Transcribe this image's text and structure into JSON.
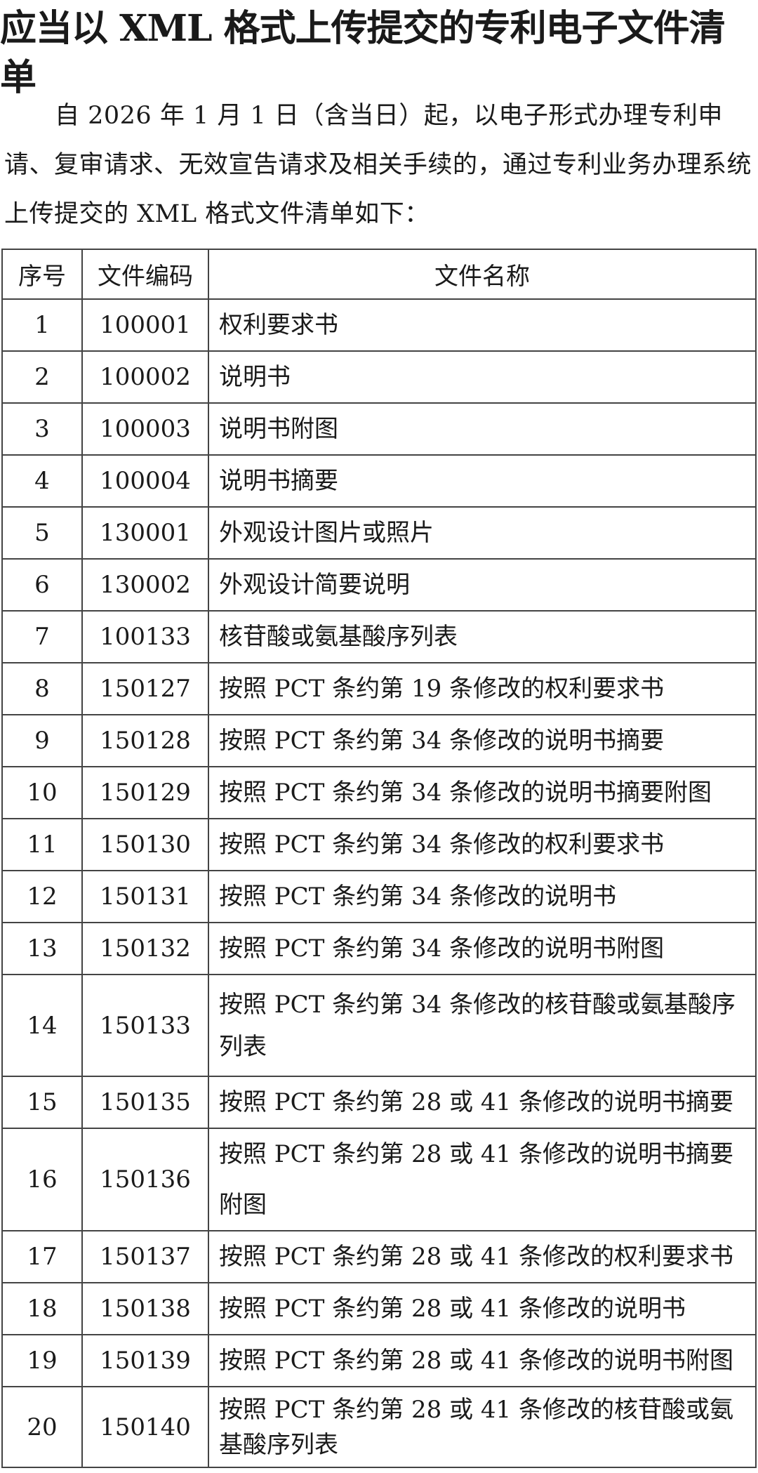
{
  "title": "应当以 XML 格式上传提交的专利电子文件清单",
  "intro": "自 2026 年 1 月 1 日（含当日）起，以电子形式办理专利申请、复审请求、无效宣告请求及相关手续的，通过专利业务办理系统上传提交的 XML 格式文件清单如下：",
  "table": {
    "headers": [
      "序号",
      "文件编码",
      "文件名称"
    ],
    "rows": [
      {
        "no": "1",
        "code": "100001",
        "name": "权利要求书"
      },
      {
        "no": "2",
        "code": "100002",
        "name": "说明书"
      },
      {
        "no": "3",
        "code": "100003",
        "name": "说明书附图"
      },
      {
        "no": "4",
        "code": "100004",
        "name": "说明书摘要"
      },
      {
        "no": "5",
        "code": "130001",
        "name": "外观设计图片或照片"
      },
      {
        "no": "6",
        "code": "130002",
        "name": "外观设计简要说明"
      },
      {
        "no": "7",
        "code": "100133",
        "name": "核苷酸或氨基酸序列表"
      },
      {
        "no": "8",
        "code": "150127",
        "name": "按照 PCT 条约第 19 条修改的权利要求书"
      },
      {
        "no": "9",
        "code": "150128",
        "name": "按照 PCT 条约第 34 条修改的说明书摘要"
      },
      {
        "no": "10",
        "code": "150129",
        "name": "按照 PCT 条约第 34 条修改的说明书摘要附图"
      },
      {
        "no": "11",
        "code": "150130",
        "name": "按照 PCT 条约第 34 条修改的权利要求书"
      },
      {
        "no": "12",
        "code": "150131",
        "name": "按照 PCT 条约第 34 条修改的说明书"
      },
      {
        "no": "13",
        "code": "150132",
        "name": "按照 PCT 条约第 34 条修改的说明书附图"
      },
      {
        "no": "14",
        "code": "150133",
        "name": "按照 PCT 条约第 34 条修改的核苷酸或氨基酸序列表"
      },
      {
        "no": "15",
        "code": "150135",
        "name": "按照 PCT 条约第 28 或 41 条修改的说明书摘要"
      },
      {
        "no": "16",
        "code": "150136",
        "name": "按照 PCT 条约第 28 或 41 条修改的说明书摘要附图"
      },
      {
        "no": "17",
        "code": "150137",
        "name": "按照 PCT 条约第 28 或 41 条修改的权利要求书"
      },
      {
        "no": "18",
        "code": "150138",
        "name": "按照 PCT 条约第 28 或 41 条修改的说明书"
      },
      {
        "no": "19",
        "code": "150139",
        "name": "按照 PCT 条约第 28 或 41 条修改的说明书附图"
      },
      {
        "no": "20",
        "code": "150140",
        "name": "按照 PCT 条约第 28 或 41 条修改的核苷酸或氨基酸序列表"
      }
    ]
  }
}
